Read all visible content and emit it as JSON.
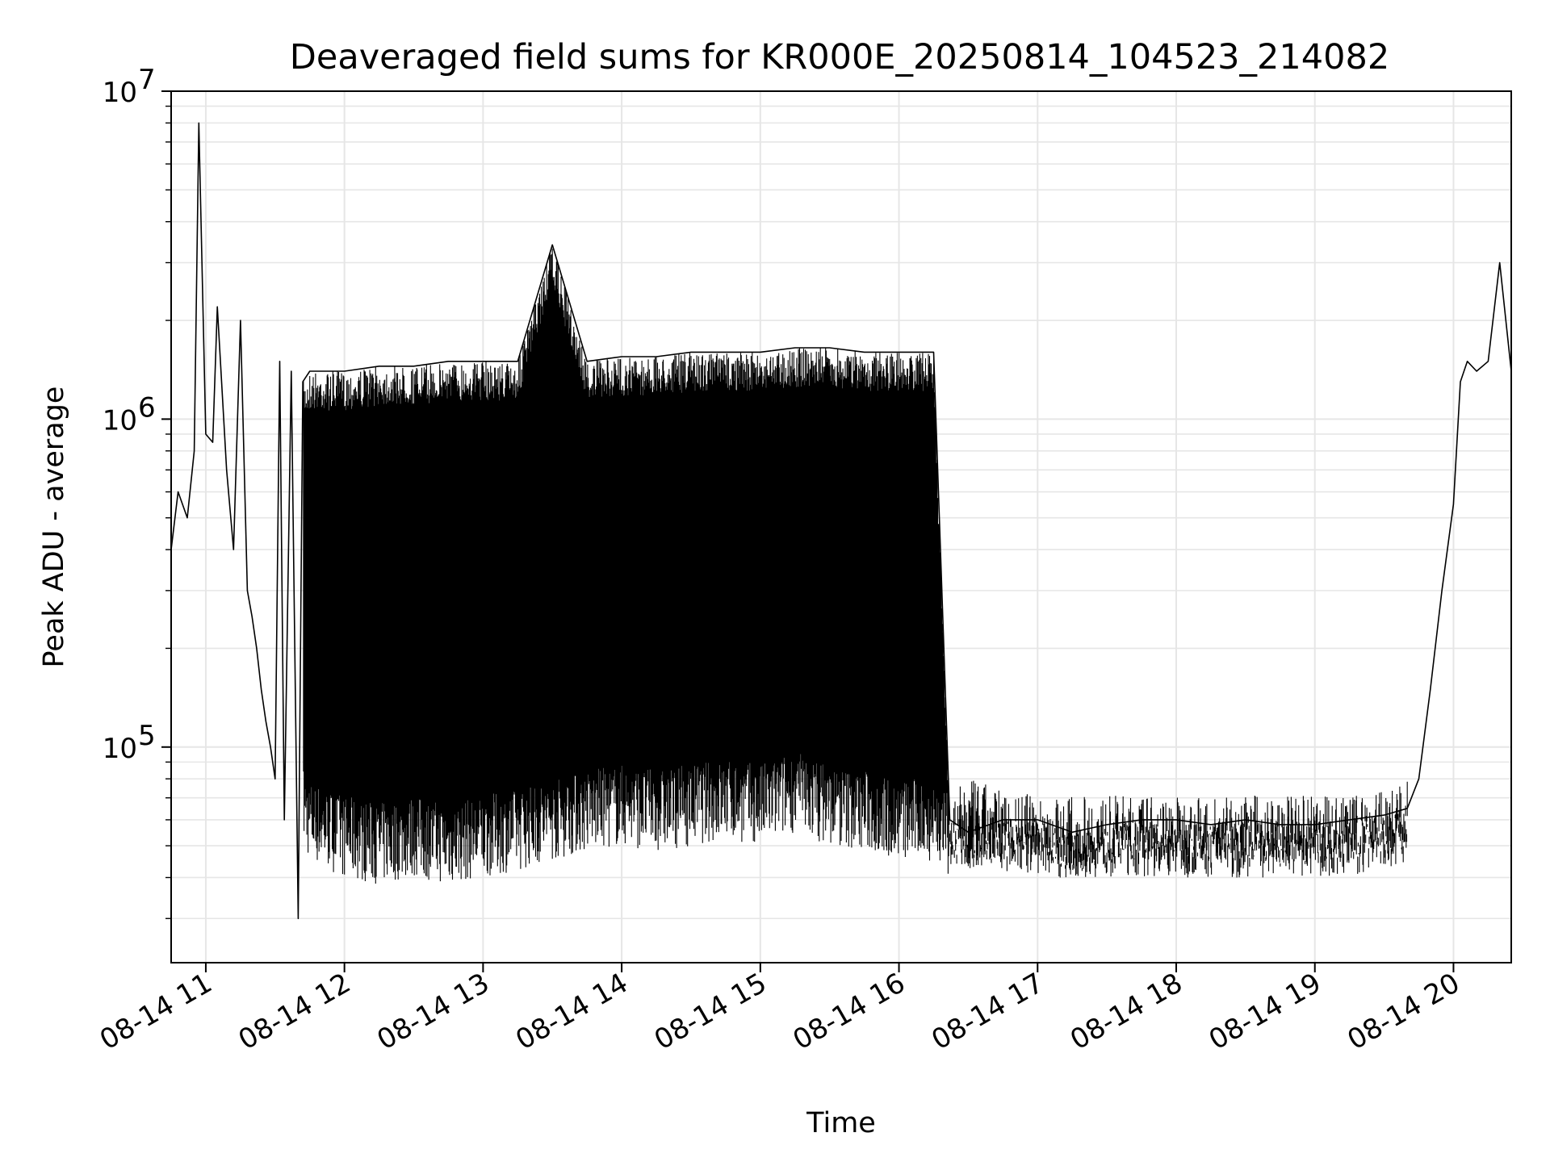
{
  "chart_data": {
    "type": "line",
    "title": "Deaveraged field sums for KR000E_20250814_104523_214082",
    "xlabel": "Time",
    "ylabel": "Peak ADU - average",
    "yscale": "log",
    "ylim": [
      22000,
      10000000
    ],
    "xlim": [
      "2025-08-14 10:45",
      "2025-08-14 20:25"
    ],
    "grid": true,
    "line_color": "#000000",
    "grid_color": "#e6e6e6",
    "x_ticks": [
      {
        "label": "08-14 11",
        "t": "2025-08-14 11:00"
      },
      {
        "label": "08-14 12",
        "t": "2025-08-14 12:00"
      },
      {
        "label": "08-14 13",
        "t": "2025-08-14 13:00"
      },
      {
        "label": "08-14 14",
        "t": "2025-08-14 14:00"
      },
      {
        "label": "08-14 15",
        "t": "2025-08-14 15:00"
      },
      {
        "label": "08-14 16",
        "t": "2025-08-14 16:00"
      },
      {
        "label": "08-14 17",
        "t": "2025-08-14 17:00"
      },
      {
        "label": "08-14 18",
        "t": "2025-08-14 18:00"
      },
      {
        "label": "08-14 19",
        "t": "2025-08-14 19:00"
      },
      {
        "label": "08-14 20",
        "t": "2025-08-14 20:00"
      }
    ],
    "y_ticks": [
      {
        "base": "10",
        "exp": "5",
        "value": 100000
      },
      {
        "base": "10",
        "exp": "6",
        "value": 1000000
      },
      {
        "base": "10",
        "exp": "7",
        "value": 10000000
      }
    ],
    "series": [
      {
        "x": [
          "2025-08-14 10:45",
          "2025-08-14 10:48",
          "2025-08-14 10:52",
          "2025-08-14 10:55",
          "2025-08-14 10:57",
          "2025-08-14 11:00",
          "2025-08-14 11:03",
          "2025-08-14 11:05",
          "2025-08-14 11:09",
          "2025-08-14 11:12",
          "2025-08-14 11:15",
          "2025-08-14 11:18",
          "2025-08-14 11:20",
          "2025-08-14 11:22",
          "2025-08-14 11:24",
          "2025-08-14 11:26",
          "2025-08-14 11:28",
          "2025-08-14 11:30",
          "2025-08-14 11:32",
          "2025-08-14 11:34",
          "2025-08-14 11:37",
          "2025-08-14 11:40",
          "2025-08-14 11:42",
          "2025-08-14 11:45",
          "2025-08-14 12:00",
          "2025-08-14 12:15",
          "2025-08-14 12:30",
          "2025-08-14 12:45",
          "2025-08-14 13:00",
          "2025-08-14 13:15",
          "2025-08-14 13:30",
          "2025-08-14 13:45",
          "2025-08-14 14:00",
          "2025-08-14 14:15",
          "2025-08-14 14:30",
          "2025-08-14 14:45",
          "2025-08-14 15:00",
          "2025-08-14 15:15",
          "2025-08-14 15:30",
          "2025-08-14 15:45",
          "2025-08-14 16:00",
          "2025-08-14 16:15",
          "2025-08-14 16:22",
          "2025-08-14 16:30",
          "2025-08-14 16:45",
          "2025-08-14 17:00",
          "2025-08-14 17:15",
          "2025-08-14 17:30",
          "2025-08-14 17:45",
          "2025-08-14 18:00",
          "2025-08-14 18:15",
          "2025-08-14 18:30",
          "2025-08-14 18:45",
          "2025-08-14 19:00",
          "2025-08-14 19:15",
          "2025-08-14 19:30",
          "2025-08-14 19:40",
          "2025-08-14 19:45",
          "2025-08-14 19:50",
          "2025-08-14 19:55",
          "2025-08-14 20:00",
          "2025-08-14 20:03",
          "2025-08-14 20:06",
          "2025-08-14 20:10",
          "2025-08-14 20:15",
          "2025-08-14 20:20",
          "2025-08-14 20:25"
        ],
        "y": [
          400000,
          600000,
          500000,
          800000,
          8000000,
          900000,
          850000,
          2200000,
          700000,
          400000,
          2000000,
          300000,
          250000,
          200000,
          150000,
          120000,
          100000,
          80000,
          1500000,
          60000,
          1400000,
          30000,
          1300000,
          1400000,
          1400000,
          1450000,
          1450000,
          1500000,
          1500000,
          1500000,
          3400000,
          1500000,
          1550000,
          1550000,
          1600000,
          1600000,
          1600000,
          1650000,
          1650000,
          1600000,
          1600000,
          1600000,
          60000,
          55000,
          60000,
          60000,
          55000,
          58000,
          60000,
          60000,
          58000,
          60000,
          58000,
          58000,
          60000,
          62000,
          65000,
          80000,
          150000,
          300000,
          550000,
          1300000,
          1500000,
          1400000,
          1500000,
          3000000,
          1400000
        ],
        "spike_low": [
          null,
          null,
          null,
          null,
          null,
          null,
          null,
          null,
          null,
          null,
          null,
          null,
          null,
          null,
          null,
          null,
          null,
          null,
          null,
          null,
          null,
          null,
          50000,
          45000,
          40000,
          38000,
          40000,
          38000,
          40000,
          42000,
          45000,
          48000,
          50000,
          48000,
          50000,
          52000,
          50000,
          55000,
          50000,
          48000,
          45000,
          45000,
          40000,
          45000,
          42000,
          40000,
          40000,
          40000,
          40000,
          40000,
          40000,
          40000,
          40000,
          40000,
          40000,
          42000,
          45000,
          null,
          null,
          null,
          null,
          null,
          null,
          null,
          null,
          null,
          null
        ]
      }
    ]
  }
}
